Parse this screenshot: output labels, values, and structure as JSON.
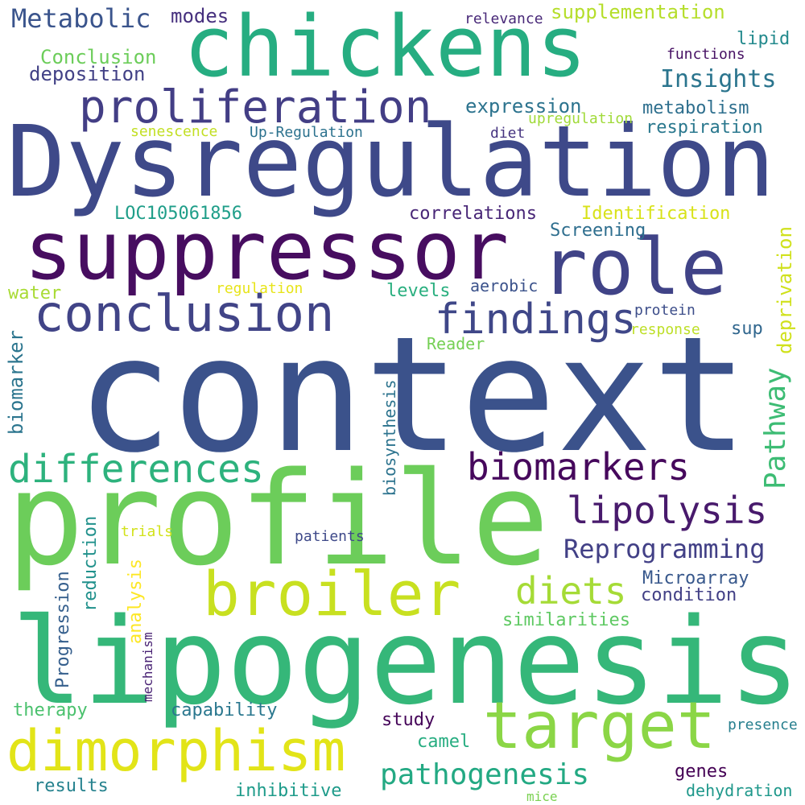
{
  "palette": {
    "dark_purple": "#440154",
    "indigo": "#46327e",
    "slate_blue": "#365c8d",
    "teal_blue": "#277f8e",
    "teal": "#1fa187",
    "green": "#4ac16d",
    "lime": "#a0da39",
    "yellow": "#fde725",
    "background": "#ffffff"
  },
  "words": [
    {
      "text": "context",
      "color": "#3b528b"
    },
    {
      "text": "profile",
      "color": "#6ccd5a"
    },
    {
      "text": "lipogenesis",
      "color": "#35b779"
    },
    {
      "text": "Dysregulation",
      "color": "#3e4989"
    },
    {
      "text": "chickens",
      "color": "#26ad81"
    },
    {
      "text": "suppressor",
      "color": "#470d60"
    },
    {
      "text": "role",
      "color": "#404387"
    },
    {
      "text": "target",
      "color": "#8bd646"
    },
    {
      "text": "dimorphism",
      "color": "#e2e418"
    },
    {
      "text": "broiler",
      "color": "#c8e020"
    },
    {
      "text": "conclusion",
      "color": "#414487"
    },
    {
      "text": "proliferation",
      "color": "#433e85"
    },
    {
      "text": "findings",
      "color": "#3f4788"
    },
    {
      "text": "differences",
      "color": "#2db27d"
    },
    {
      "text": "biomarkers",
      "color": "#46085c"
    },
    {
      "text": "lipolysis",
      "color": "#481a6c"
    },
    {
      "text": "diets",
      "color": "#a5db36"
    },
    {
      "text": "pathogenesis",
      "color": "#23a983"
    },
    {
      "text": "Reprogramming",
      "color": "#424086"
    },
    {
      "text": "Pathway",
      "color": "#3dbc74"
    },
    {
      "text": "Metabolic",
      "color": "#3a548c"
    },
    {
      "text": "Insights",
      "color": "#2b758e"
    },
    {
      "text": "modes",
      "color": "#46307e"
    },
    {
      "text": "supplementation",
      "color": "#b5de2b"
    },
    {
      "text": "relevance",
      "color": "#482878"
    },
    {
      "text": "lipid",
      "color": "#238a8d"
    },
    {
      "text": "Conclusion",
      "color": "#6ccd5a"
    },
    {
      "text": "functions",
      "color": "#471164"
    },
    {
      "text": "deposition",
      "color": "#424186"
    },
    {
      "text": "expression",
      "color": "#2c738e"
    },
    {
      "text": "metabolism",
      "color": "#2e6f8e"
    },
    {
      "text": "respiration",
      "color": "#2a788e"
    },
    {
      "text": "senescence",
      "color": "#c2df23"
    },
    {
      "text": "Up-Regulation",
      "color": "#2c728e"
    },
    {
      "text": "upregulation",
      "color": "#a0da39"
    },
    {
      "text": "diet",
      "color": "#463480"
    },
    {
      "text": "LOC105061856",
      "color": "#1f9e89"
    },
    {
      "text": "correlations",
      "color": "#482677"
    },
    {
      "text": "Identification",
      "color": "#d8e219"
    },
    {
      "text": "Screening",
      "color": "#2e6e8e"
    },
    {
      "text": "water",
      "color": "#a8db34"
    },
    {
      "text": "regulation",
      "color": "#e7e419"
    },
    {
      "text": "levels",
      "color": "#29af7f"
    },
    {
      "text": "aerobic",
      "color": "#3b528b"
    },
    {
      "text": "deprivation",
      "color": "#d0e11c"
    },
    {
      "text": "protein",
      "color": "#3d4e8a"
    },
    {
      "text": "response",
      "color": "#bddf26"
    },
    {
      "text": "sup",
      "color": "#31678e"
    },
    {
      "text": "biomarker",
      "color": "#2b758e"
    },
    {
      "text": "Reader",
      "color": "#75d054"
    },
    {
      "text": "biosynthesis",
      "color": "#2c738e"
    },
    {
      "text": "trials",
      "color": "#d2e21b"
    },
    {
      "text": "analysis",
      "color": "#fde725"
    },
    {
      "text": "reduction",
      "color": "#21918c"
    },
    {
      "text": "patients",
      "color": "#3e4989"
    },
    {
      "text": "Microarray",
      "color": "#38588c"
    },
    {
      "text": "condition",
      "color": "#424086"
    },
    {
      "text": "similarities",
      "color": "#5ec962"
    },
    {
      "text": "Progression",
      "color": "#355f8d"
    },
    {
      "text": "mechanism",
      "color": "#482173"
    },
    {
      "text": "therapy",
      "color": "#4ac16d"
    },
    {
      "text": "capability",
      "color": "#2a778e"
    },
    {
      "text": "study",
      "color": "#450559"
    },
    {
      "text": "camel",
      "color": "#27ad81"
    },
    {
      "text": "presence",
      "color": "#277f8e"
    },
    {
      "text": "genes",
      "color": "#440154"
    },
    {
      "text": "results",
      "color": "#26828e"
    },
    {
      "text": "inhibitive",
      "color": "#1e9b8a"
    },
    {
      "text": "mice",
      "color": "#7ad151"
    },
    {
      "text": "dehydration",
      "color": "#1f988b"
    }
  ]
}
